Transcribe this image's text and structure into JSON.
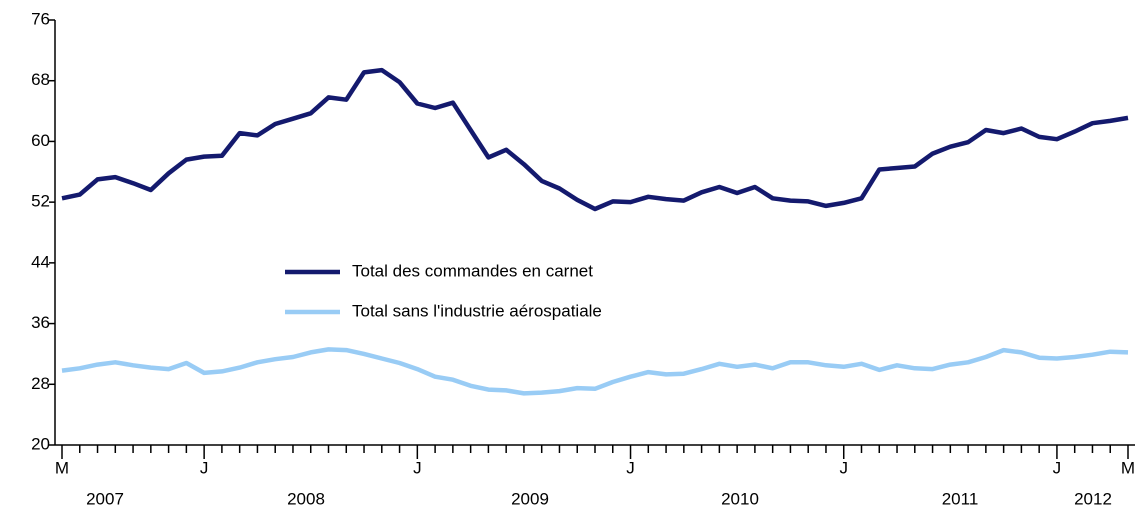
{
  "chart_data": {
    "type": "line",
    "categories": [
      "M",
      null,
      null,
      null,
      null,
      null,
      null,
      null,
      "J",
      null,
      null,
      null,
      null,
      null,
      null,
      null,
      null,
      null,
      null,
      null,
      "J",
      null,
      null,
      null,
      null,
      null,
      null,
      null,
      null,
      null,
      null,
      null,
      "J",
      null,
      null,
      null,
      null,
      null,
      null,
      null,
      null,
      null,
      null,
      null,
      "J",
      null,
      null,
      null,
      null,
      null,
      null,
      null,
      null,
      null,
      null,
      null,
      "J",
      null,
      null,
      null,
      "M"
    ],
    "year_labels": [
      "2007",
      "2008",
      "2009",
      "2010",
      "2011",
      "2012"
    ],
    "series": [
      {
        "name": "Total des commandes en carnet",
        "color": "#141a6e",
        "values": [
          52.5,
          53.0,
          55.0,
          55.3,
          54.5,
          53.6,
          55.8,
          57.6,
          58.0,
          58.1,
          61.1,
          60.8,
          62.3,
          63.0,
          63.7,
          65.8,
          65.5,
          69.1,
          69.4,
          67.8,
          65.0,
          64.4,
          65.1,
          61.5,
          57.9,
          58.9,
          57.0,
          54.8,
          53.8,
          52.3,
          51.1,
          52.1,
          52.0,
          52.7,
          52.4,
          52.2,
          53.3,
          54.0,
          53.2,
          54.0,
          52.5,
          52.2,
          52.1,
          51.5,
          51.9,
          52.5,
          56.3,
          56.5,
          56.7,
          58.4,
          59.3,
          59.9,
          61.5,
          61.1,
          61.7,
          60.6,
          60.3,
          61.3,
          62.4,
          62.7,
          63.1
        ]
      },
      {
        "name": "Total sans l'industrie aérospatiale",
        "color": "#99ccf5",
        "values": [
          29.8,
          30.1,
          30.6,
          30.9,
          30.5,
          30.2,
          30.0,
          30.8,
          29.5,
          29.7,
          30.2,
          30.9,
          31.3,
          31.6,
          32.2,
          32.6,
          32.5,
          32.0,
          31.4,
          30.8,
          30.0,
          29.0,
          28.6,
          27.8,
          27.3,
          27.2,
          26.8,
          26.9,
          27.1,
          27.5,
          27.4,
          28.3,
          29.0,
          29.6,
          29.3,
          29.4,
          30.0,
          30.7,
          30.3,
          30.6,
          30.1,
          30.9,
          30.9,
          30.5,
          30.3,
          30.7,
          29.9,
          30.5,
          30.1,
          30.0,
          30.6,
          30.9,
          31.6,
          32.5,
          32.2,
          31.5,
          31.4,
          31.6,
          31.9,
          32.3,
          32.2
        ]
      }
    ],
    "ylim": [
      20,
      76
    ],
    "yticks": [
      20,
      28,
      36,
      44,
      52,
      60,
      68,
      76
    ],
    "grid": false
  }
}
